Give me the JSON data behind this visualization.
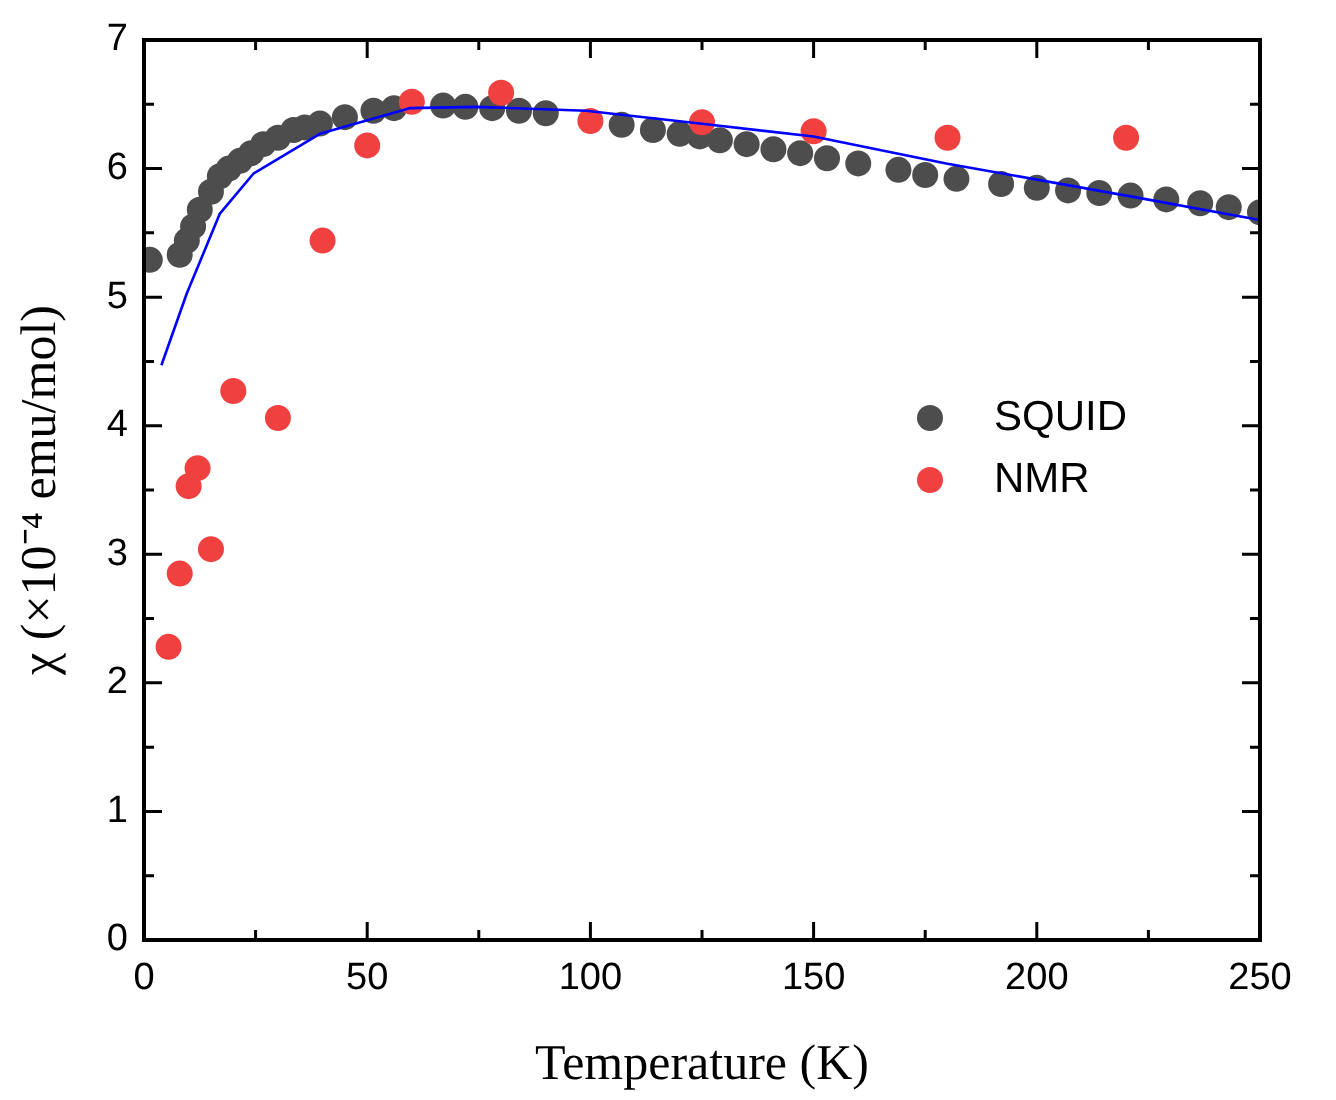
{
  "chart_data": {
    "type": "scatter",
    "xlabel": "Temperature (K)",
    "ylabel": "χ (×10⁻⁴ emu/mol)",
    "xlim": [
      0,
      250
    ],
    "ylim": [
      0,
      7
    ],
    "xticks": [
      0,
      {
        "value": 25,
        "label": null
      },
      50,
      {
        "value": 75,
        "label": null
      },
      100,
      {
        "value": 125,
        "label": null
      },
      150,
      {
        "value": 175,
        "label": null
      },
      200,
      {
        "value": 225,
        "label": null
      },
      250
    ],
    "yticks": [
      0,
      {
        "value": 0.5,
        "label": null
      },
      1,
      {
        "value": 1.5,
        "label": null
      },
      2,
      {
        "value": 2.5,
        "label": null
      },
      3,
      {
        "value": 3.5,
        "label": null
      },
      4,
      {
        "value": 4.5,
        "label": null
      },
      5,
      {
        "value": 5.5,
        "label": null
      },
      6,
      {
        "value": 6.5,
        "label": null
      },
      7
    ],
    "grid": false,
    "legend": "right",
    "marker": "circle",
    "series": [
      {
        "name": "SQUID",
        "color": "#4d4d4d",
        "x": [
          1.3,
          8,
          9.6,
          11,
          12.5,
          15,
          17,
          19,
          21.5,
          24,
          26.7,
          30,
          33.5,
          36,
          39.4,
          45,
          51.4,
          56,
          67,
          72,
          78,
          84,
          90,
          107,
          114,
          120,
          124.5,
          129,
          135,
          141,
          147,
          153,
          160,
          169,
          175,
          182,
          192,
          200,
          207,
          214,
          221,
          229,
          236.6,
          243,
          250
        ],
        "values": [
          5.29,
          5.33,
          5.44,
          5.55,
          5.68,
          5.82,
          5.94,
          6.0,
          6.06,
          6.12,
          6.19,
          6.24,
          6.3,
          6.32,
          6.35,
          6.4,
          6.45,
          6.47,
          6.49,
          6.48,
          6.47,
          6.45,
          6.43,
          6.34,
          6.3,
          6.27,
          6.25,
          6.22,
          6.19,
          6.15,
          6.12,
          6.08,
          6.04,
          5.99,
          5.95,
          5.92,
          5.88,
          5.85,
          5.83,
          5.81,
          5.79,
          5.76,
          5.73,
          5.7,
          5.66
        ]
      },
      {
        "name": "NMR",
        "color": "#f04040",
        "x": [
          5.5,
          8,
          10,
          12,
          15,
          20,
          30,
          40,
          50,
          60,
          80,
          100,
          125,
          150,
          180,
          220
        ],
        "values": [
          2.28,
          2.85,
          3.53,
          3.67,
          3.04,
          4.27,
          4.06,
          5.44,
          6.18,
          6.52,
          6.59,
          6.37,
          6.36,
          6.29,
          6.24,
          6.24
        ]
      },
      {
        "type": "line",
        "color": "#0000ff",
        "marker": "none",
        "x": [
          3.9,
          9.6,
          17,
          24.5,
          39.4,
          59.5,
          74.5,
          99,
          124.5,
          150,
          179.7,
          221.6,
          250
        ],
        "values": [
          4.47,
          5.03,
          5.65,
          5.96,
          6.27,
          6.47,
          6.48,
          6.45,
          6.35,
          6.25,
          6.04,
          5.78,
          5.6
        ]
      }
    ]
  }
}
